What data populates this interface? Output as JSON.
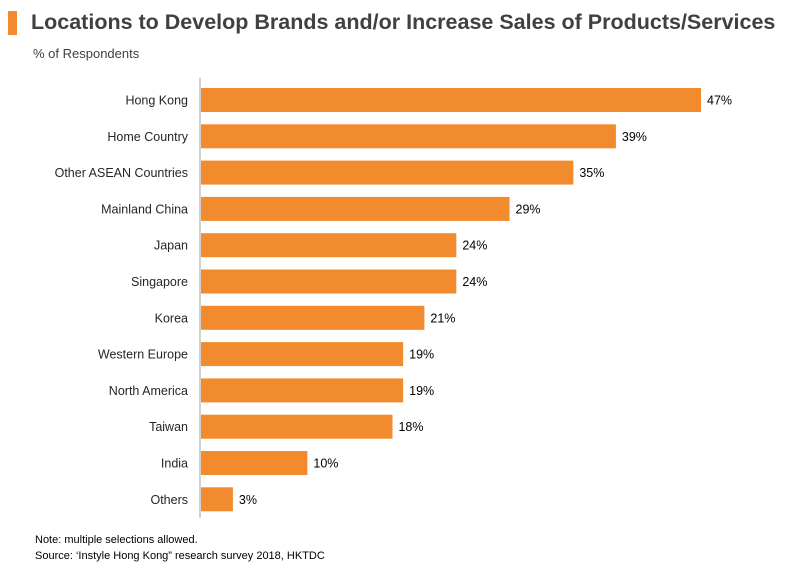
{
  "title": "Locations to Develop Brands and/or Increase Sales of Products/Services",
  "subtitle": "% of Respondents",
  "note": "Note: multiple selections allowed.",
  "source": "Source: ‘Instyle Hong Kong” research survey 2018, HKTDC",
  "colors": {
    "accent": "#f28a2e",
    "bar": "#f28a2e",
    "title": "#404040",
    "axis": "#a6a6a6"
  },
  "chart_data": {
    "type": "bar",
    "orientation": "horizontal",
    "categories": [
      "Hong Kong",
      "Home Country",
      "Other ASEAN Countries",
      "Mainland China",
      "Japan",
      "Singapore",
      "Korea",
      "Western Europe",
      "North America",
      "Taiwan",
      "India",
      "Others"
    ],
    "values": [
      47,
      39,
      35,
      29,
      24,
      24,
      21,
      19,
      19,
      18,
      10,
      3
    ],
    "value_labels": [
      "47%",
      "39%",
      "35%",
      "29%",
      "24%",
      "24%",
      "21%",
      "19%",
      "19%",
      "18%",
      "10%",
      "3%"
    ],
    "title": "Locations to Develop Brands and/or Increase Sales of Products/Services",
    "subtitle": "% of Respondents",
    "xlabel": "",
    "ylabel": "",
    "xlim": [
      0,
      47
    ],
    "grid": false,
    "legend": "none"
  }
}
